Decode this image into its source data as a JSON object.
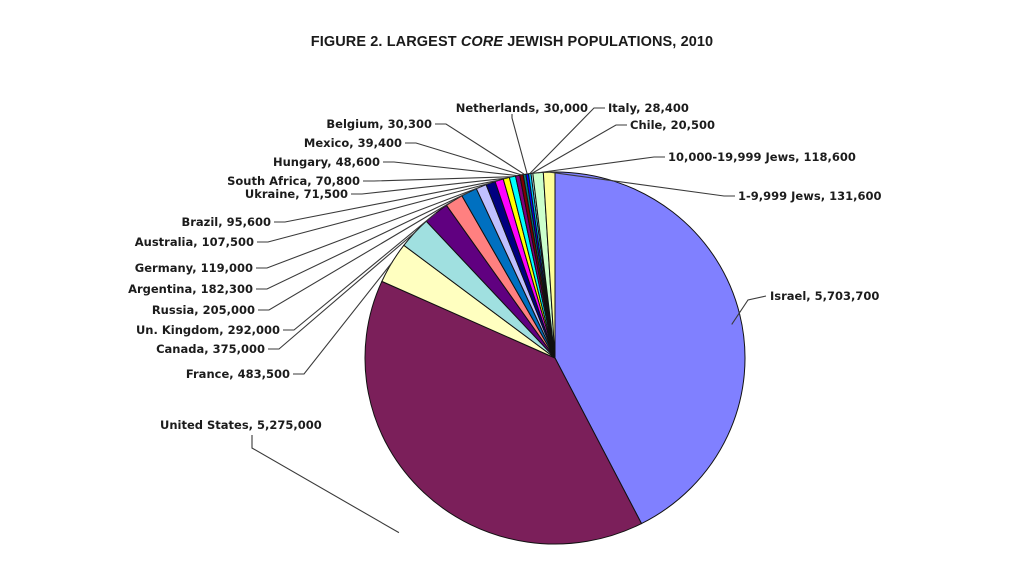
{
  "title": {
    "prefix": "FIGURE 2. LARGEST ",
    "italic": "CORE",
    "suffix": " JEWISH POPULATIONS, 2010"
  },
  "chart_data": {
    "type": "pie",
    "title": "FIGURE 2. LARGEST CORE JEWISH POPULATIONS, 2010",
    "start_angle_deg": 90,
    "direction": "clockwise",
    "labels_shown": "category, value",
    "legend": "none (callout labels with leader lines)",
    "slices": [
      {
        "label": "Israel",
        "value": 5703700,
        "color": "#8080ff"
      },
      {
        "label": "United States",
        "value": 5275000,
        "color": "#7b1f5a"
      },
      {
        "label": "France",
        "value": 483500,
        "color": "#ffffc0"
      },
      {
        "label": "Canada",
        "value": 375000,
        "color": "#a0e0e0"
      },
      {
        "label": "Un. Kingdom",
        "value": 292000,
        "color": "#600080"
      },
      {
        "label": "Russia",
        "value": 205000,
        "color": "#ff8080"
      },
      {
        "label": "Argentina",
        "value": 182300,
        "color": "#0070c0"
      },
      {
        "label": "Germany",
        "value": 119000,
        "color": "#c0c0ff"
      },
      {
        "label": "Australia",
        "value": 107500,
        "color": "#000080"
      },
      {
        "label": "Brazil",
        "value": 95600,
        "color": "#ff00ff"
      },
      {
        "label": "Ukraine",
        "value": 71500,
        "color": "#ffff00"
      },
      {
        "label": "South Africa",
        "value": 70800,
        "color": "#00ffff"
      },
      {
        "label": "Hungary",
        "value": 48600,
        "color": "#800080"
      },
      {
        "label": "Mexico",
        "value": 39400,
        "color": "#800000"
      },
      {
        "label": "Belgium",
        "value": 30300,
        "color": "#008080"
      },
      {
        "label": "Netherlands",
        "value": 30000,
        "color": "#0000ff"
      },
      {
        "label": "Italy",
        "value": 28400,
        "color": "#00ccff"
      },
      {
        "label": "Chile",
        "value": 20500,
        "color": "#ccffff"
      },
      {
        "label": "10,000-19,999 Jews",
        "value": 118600,
        "color": "#ccffcc"
      },
      {
        "label": "1-9,999 Jews",
        "value": 131600,
        "color": "#ffff99"
      }
    ],
    "callouts": [
      {
        "label": "Israel, 5,703,700"
      },
      {
        "label": "United States, 5,275,000"
      },
      {
        "label": "France, 483,500"
      },
      {
        "label": "Canada, 375,000"
      },
      {
        "label": "Un. Kingdom, 292,000"
      },
      {
        "label": "Russia, 205,000"
      },
      {
        "label": "Argentina, 182,300"
      },
      {
        "label": "Germany, 119,000"
      },
      {
        "label": "Australia, 107,500"
      },
      {
        "label": "Brazil, 95,600"
      },
      {
        "label": "Ukraine, 71,500"
      },
      {
        "label": "South Africa, 70,800"
      },
      {
        "label": "Hungary, 48,600"
      },
      {
        "label": "Mexico, 39,400"
      },
      {
        "label": "Belgium, 30,300"
      },
      {
        "label": "Netherlands, 30,000"
      },
      {
        "label": "Italy, 28,400"
      },
      {
        "label": "Chile, 20,500"
      },
      {
        "label": "10,000-19,999 Jews, 118,600"
      },
      {
        "label": "1-9,999 Jews, 131,600"
      }
    ]
  }
}
